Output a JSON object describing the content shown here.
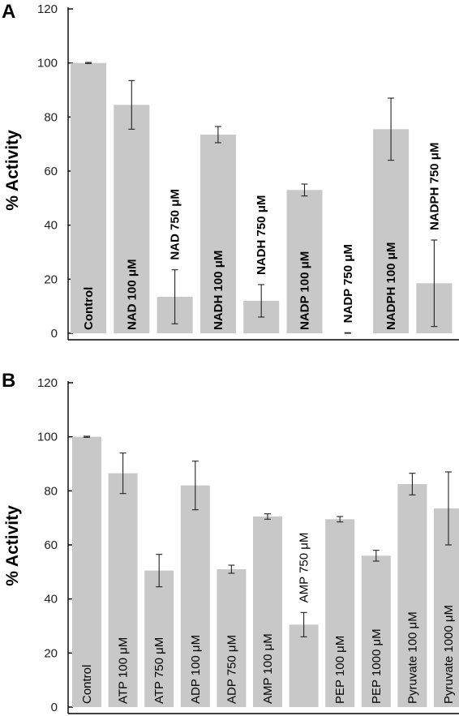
{
  "chart_data": [
    {
      "type": "bar",
      "panel": "A",
      "ylabel": "% Activity",
      "ylim": [
        0,
        120
      ],
      "yticks": [
        0,
        20,
        40,
        60,
        80,
        100,
        120
      ],
      "categories": [
        "Control",
        "NAD 100 μM",
        "NAD 750 μM",
        "NADH 100 μM",
        "NADH 750 μM",
        "NADP 100 μM",
        "NADP 750 μM",
        "NADPH 100 μM",
        "NADPH 750 μM"
      ],
      "values": [
        100,
        84.5,
        13.5,
        73.5,
        12,
        53,
        0,
        75.5,
        18.5
      ],
      "errors": [
        0.2,
        9,
        10,
        3,
        6,
        2.2,
        0.2,
        11.5,
        16
      ],
      "label_inside": [
        true,
        true,
        false,
        true,
        false,
        true,
        false,
        true,
        false
      ]
    },
    {
      "type": "bar",
      "panel": "B",
      "ylabel": "% Activity",
      "ylim": [
        0,
        120
      ],
      "yticks": [
        0,
        20,
        40,
        60,
        80,
        100,
        120
      ],
      "categories": [
        "Control",
        "ATP 100 μM",
        "ATP 750 μM",
        "ADP 100 μM",
        "ADP 750 μM",
        "AMP 100 μM",
        "AMP 750 μM",
        "PEP 100 μM",
        "PEP 1000 μM",
        "Pyruvate 100 μM",
        "Pyruvate 1000 μM"
      ],
      "values": [
        100,
        86.5,
        50.5,
        82,
        51,
        70.5,
        30.5,
        69.5,
        56,
        82.5,
        73.5
      ],
      "errors": [
        0.2,
        7.5,
        6,
        9,
        1.5,
        1,
        4.5,
        1,
        2,
        4,
        13.5
      ],
      "label_inside": [
        true,
        true,
        true,
        true,
        true,
        true,
        false,
        true,
        true,
        true,
        true
      ]
    }
  ]
}
